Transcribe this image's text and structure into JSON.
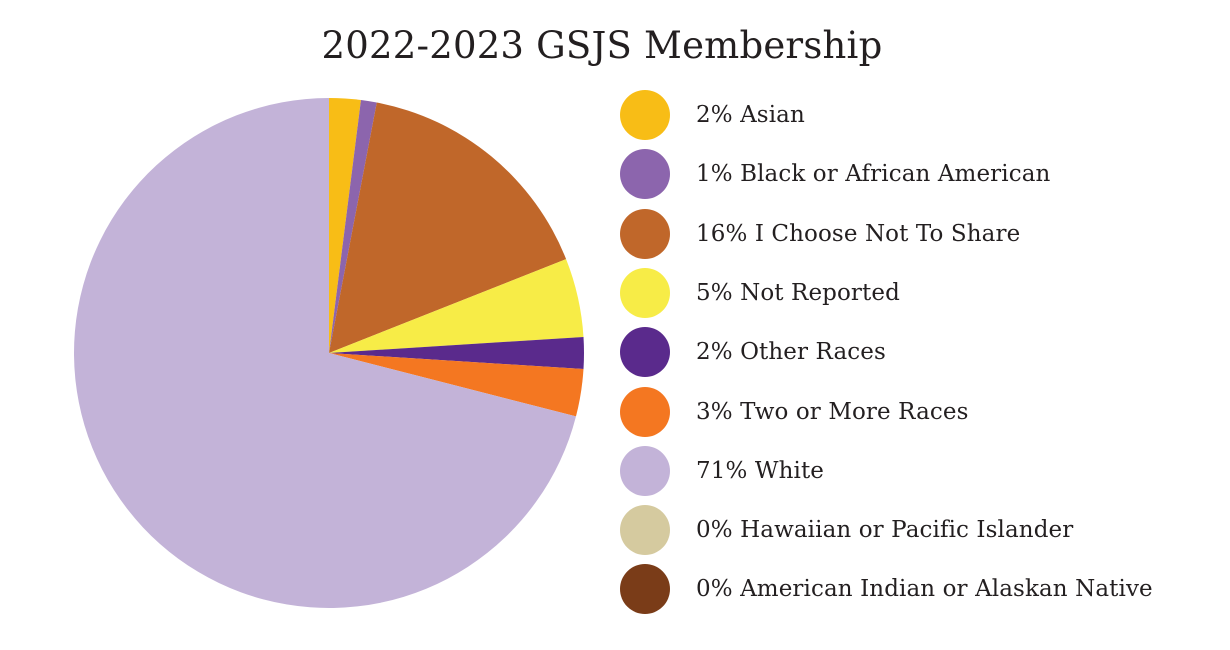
{
  "chart_data": {
    "type": "pie",
    "title": "2022-2023 GSJS Membership",
    "unit": "%",
    "slices": [
      {
        "label": "Asian",
        "value": 2,
        "color": "#f8bd16"
      },
      {
        "label": "Black or African American",
        "value": 1,
        "color": "#8c65ad"
      },
      {
        "label": "I Choose Not To Share",
        "value": 16,
        "color": "#c0672a"
      },
      {
        "label": "Not Reported",
        "value": 5,
        "color": "#f7ec47"
      },
      {
        "label": "Other Races",
        "value": 2,
        "color": "#5a2a8c"
      },
      {
        "label": "Two or More Races",
        "value": 3,
        "color": "#f47721"
      },
      {
        "label": "White",
        "value": 71,
        "color": "#c3b3d8"
      },
      {
        "label": "Hawaiian or Pacific Islander",
        "value": 0,
        "color": "#d5ca9f"
      },
      {
        "label": "American Indian or Alaskan Native",
        "value": 0,
        "color": "#7a3c18"
      }
    ],
    "legend": {
      "position": "right",
      "items": [
        "2% Asian",
        "1% Black or African American",
        "16% I Choose Not To Share",
        "5% Not Reported",
        "2% Other Races",
        "3% Two or More Races",
        "71% White",
        "0% Hawaiian or Pacific Islander",
        "0% American Indian or Alaskan Native"
      ]
    }
  }
}
